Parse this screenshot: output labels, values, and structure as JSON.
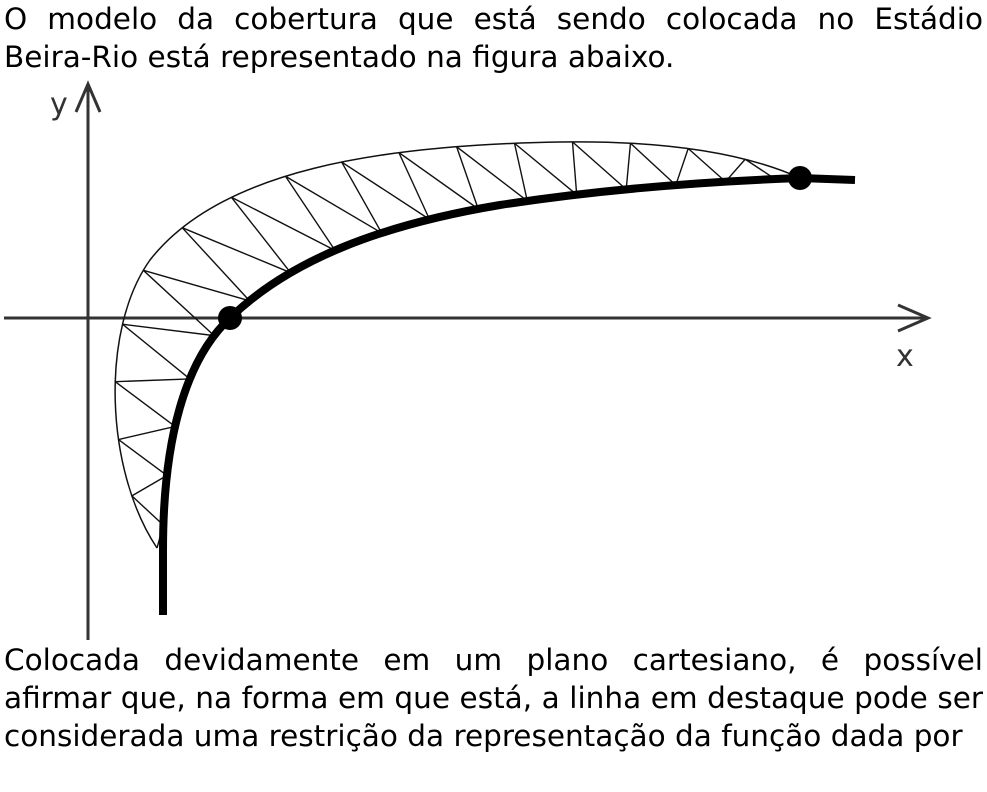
{
  "intro_text": "O modelo da cobertura que está sendo colocada no Estádio Beira-Rio está representado na figura abaixo.",
  "question_text": "Colocada devidamente em um plano cartesiano, é possível afirmar que, na forma em que está, a linha em destaque pode ser considerada uma restrição da representação da função dada por",
  "figure": {
    "x_axis_label": "x",
    "y_axis_label": "y",
    "colors": {
      "axis": "#333333",
      "curve": "#000000",
      "truss": "#111111"
    }
  }
}
